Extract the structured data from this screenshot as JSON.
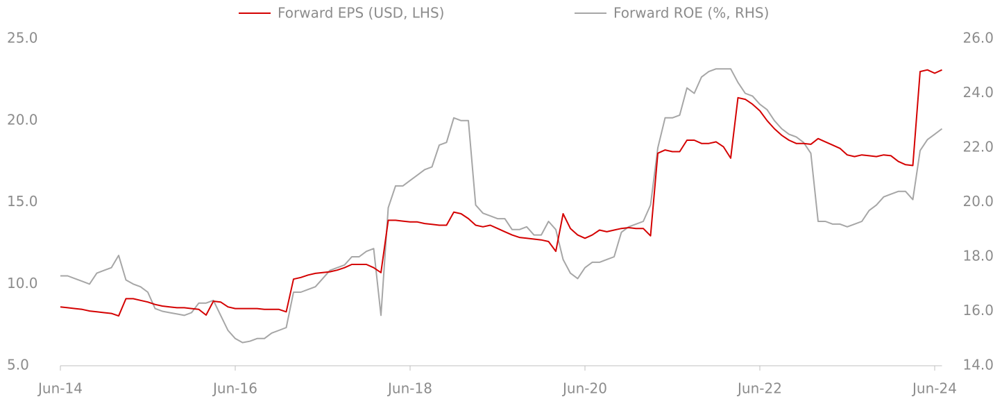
{
  "chart_data": {
    "type": "line",
    "categories": [
      "Jun-14",
      null,
      null,
      null,
      null,
      null,
      null,
      null,
      null,
      null,
      null,
      null,
      null,
      null,
      null,
      null,
      null,
      null,
      null,
      null,
      null,
      null,
      null,
      null,
      "Jun-16",
      null,
      null,
      null,
      null,
      null,
      null,
      null,
      null,
      null,
      null,
      null,
      null,
      null,
      null,
      null,
      null,
      null,
      null,
      null,
      null,
      null,
      null,
      null,
      "Jun-18",
      null,
      null,
      null,
      null,
      null,
      null,
      null,
      null,
      null,
      null,
      null,
      null,
      null,
      null,
      null,
      null,
      null,
      null,
      null,
      null,
      null,
      null,
      null,
      "Jun-20",
      null,
      null,
      null,
      null,
      null,
      null,
      null,
      null,
      null,
      null,
      null,
      null,
      null,
      null,
      null,
      null,
      null,
      null,
      null,
      null,
      null,
      null,
      null,
      "Jun-22",
      null,
      null,
      null,
      null,
      null,
      null,
      null,
      null,
      null,
      null,
      null,
      null,
      null,
      null,
      null,
      null,
      null,
      null,
      null,
      null,
      null,
      null,
      null,
      "Jun-24",
      null
    ],
    "series": [
      {
        "name": "Forward EPS (USD, LHS)",
        "color": "#d40000",
        "values": [
          8.6,
          8.55,
          8.5,
          8.45,
          8.35,
          8.3,
          8.25,
          8.2,
          8.05,
          9.1,
          9.1,
          9.0,
          8.9,
          8.75,
          8.65,
          8.6,
          8.55,
          8.55,
          8.5,
          8.45,
          8.1,
          8.95,
          8.9,
          8.6,
          8.5,
          8.5,
          8.5,
          8.5,
          8.45,
          8.45,
          8.45,
          8.3,
          10.3,
          10.4,
          10.55,
          10.65,
          10.7,
          10.75,
          10.85,
          11.0,
          11.2,
          11.2,
          11.2,
          11.0,
          10.7,
          13.9,
          13.9,
          13.85,
          13.8,
          13.8,
          13.7,
          13.65,
          13.6,
          13.6,
          14.4,
          14.3,
          14.0,
          13.6,
          13.5,
          13.6,
          13.4,
          13.2,
          13.0,
          12.85,
          12.8,
          12.75,
          12.7,
          12.6,
          12.0,
          14.3,
          13.4,
          13.0,
          12.8,
          13.0,
          13.3,
          13.2,
          13.3,
          13.4,
          13.45,
          13.4,
          13.4,
          12.95,
          18.0,
          18.2,
          18.1,
          18.1,
          18.8,
          18.8,
          18.6,
          18.6,
          18.7,
          18.4,
          17.7,
          21.4,
          21.3,
          21.0,
          20.6,
          20.0,
          19.5,
          19.1,
          18.8,
          18.6,
          18.6,
          18.55,
          18.9,
          18.7,
          18.5,
          18.3,
          17.9,
          17.8,
          17.9,
          17.85,
          17.8,
          17.9,
          17.85,
          17.5,
          17.3,
          17.25,
          23.0,
          23.1,
          22.9,
          23.1
        ]
      },
      {
        "name": "Forward ROE (%, RHS)",
        "color": "#a6a6a6",
        "axis": "y2",
        "values": [
          17.3,
          17.3,
          17.2,
          17.1,
          17.0,
          17.4,
          17.5,
          17.6,
          18.05,
          17.15,
          17.0,
          16.9,
          16.7,
          16.1,
          16.0,
          15.95,
          15.9,
          15.85,
          15.95,
          16.3,
          16.3,
          16.4,
          15.85,
          15.3,
          15.0,
          14.85,
          14.9,
          15.0,
          15.0,
          15.2,
          15.3,
          15.4,
          16.7,
          16.7,
          16.8,
          16.9,
          17.2,
          17.5,
          17.6,
          17.7,
          18.0,
          18.0,
          18.2,
          18.3,
          15.85,
          19.8,
          20.6,
          20.6,
          20.8,
          21.0,
          21.2,
          21.3,
          22.1,
          22.2,
          23.1,
          23.0,
          23.0,
          19.9,
          19.6,
          19.5,
          19.4,
          19.4,
          19.0,
          19.0,
          19.1,
          18.8,
          18.8,
          19.3,
          19.0,
          17.9,
          17.4,
          17.2,
          17.6,
          17.8,
          17.8,
          17.9,
          18.0,
          18.9,
          19.1,
          19.2,
          19.3,
          19.9,
          22.0,
          23.1,
          23.1,
          23.2,
          24.2,
          24.0,
          24.6,
          24.8,
          24.9,
          24.9,
          24.9,
          24.4,
          24.0,
          23.9,
          23.6,
          23.4,
          23.0,
          22.7,
          22.5,
          22.4,
          22.2,
          21.8,
          19.3,
          19.3,
          19.2,
          19.2,
          19.1,
          19.2,
          19.3,
          19.7,
          19.9,
          20.2,
          20.3,
          20.4,
          20.4,
          20.1,
          21.9,
          22.3,
          22.5,
          22.7
        ]
      }
    ],
    "ylim": [
      5,
      25
    ],
    "yticks": [
      {
        "value": 5,
        "label": "5.0"
      },
      {
        "value": 10,
        "label": "10.0"
      },
      {
        "value": 15,
        "label": "15.0"
      },
      {
        "value": 20,
        "label": "20.0"
      },
      {
        "value": 25,
        "label": "25.0"
      }
    ],
    "y2lim": [
      14,
      26
    ],
    "y2ticks": [
      {
        "value": 14,
        "label": "14.0"
      },
      {
        "value": 16,
        "label": "16.0"
      },
      {
        "value": 18,
        "label": "18.0"
      },
      {
        "value": 20,
        "label": "20.0"
      },
      {
        "value": 22,
        "label": "22.0"
      },
      {
        "value": 24,
        "label": "24.0"
      },
      {
        "value": 26,
        "label": "26.0"
      }
    ],
    "legend": "top"
  }
}
